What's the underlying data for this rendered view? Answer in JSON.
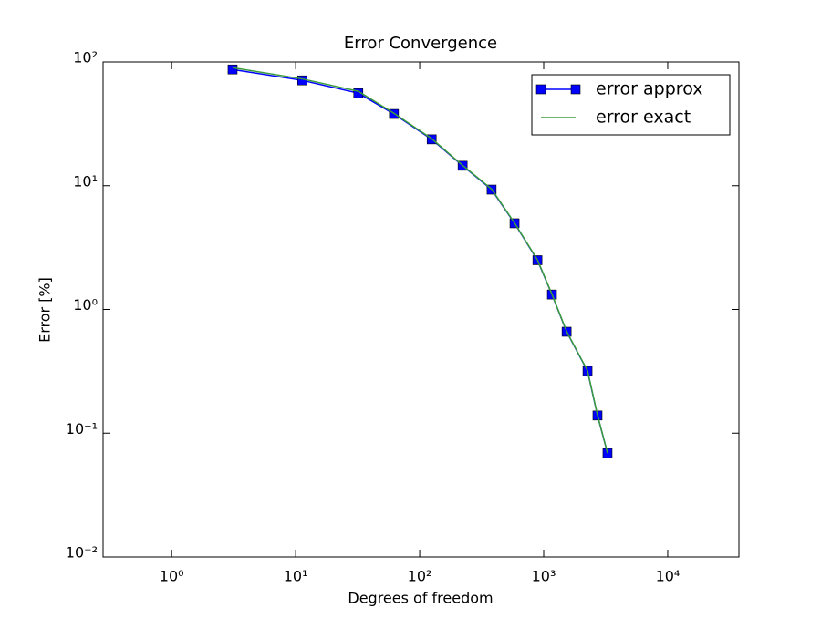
{
  "chart_data": {
    "type": "line",
    "title": "Error Convergence",
    "x_label": "Degrees of freedom",
    "y_label": "Error [%]",
    "x": [
      3.1,
      11.3,
      32,
      62,
      125,
      222,
      380,
      582,
      890,
      1165,
      1530,
      2256,
      2715,
      3270
    ],
    "series": [
      {
        "name": "error approx",
        "color": "#0000ff",
        "marker": "s",
        "values": [
          87,
          71,
          56,
          38,
          23.7,
          14.5,
          9.3,
          4.97,
          2.5,
          1.32,
          0.66,
          0.318,
          0.139,
          0.069
        ]
      },
      {
        "name": "error exact",
        "color": "#3a9d3a",
        "values": [
          90,
          73,
          58,
          38.5,
          24,
          14.6,
          9.4,
          5.0,
          2.52,
          1.33,
          0.665,
          0.32,
          0.14,
          0.069
        ]
      }
    ],
    "xscale": "log",
    "yscale": "log",
    "xlim": [
      0.28,
      37500
    ],
    "ylim": [
      0.01,
      100
    ],
    "xticks": [
      {
        "value": 1,
        "label": "10⁰"
      },
      {
        "value": 10,
        "label": "10¹"
      },
      {
        "value": 100,
        "label": "10²"
      },
      {
        "value": 1000,
        "label": "10³"
      },
      {
        "value": 10000,
        "label": "10⁴"
      }
    ],
    "yticks": [
      {
        "value": 0.01,
        "label": "10⁻²"
      },
      {
        "value": 0.1,
        "label": "10⁻¹"
      },
      {
        "value": 1,
        "label": "10⁰"
      },
      {
        "value": 10,
        "label": "10¹"
      },
      {
        "value": 100,
        "label": "10²"
      }
    ],
    "legend": "upper right"
  }
}
